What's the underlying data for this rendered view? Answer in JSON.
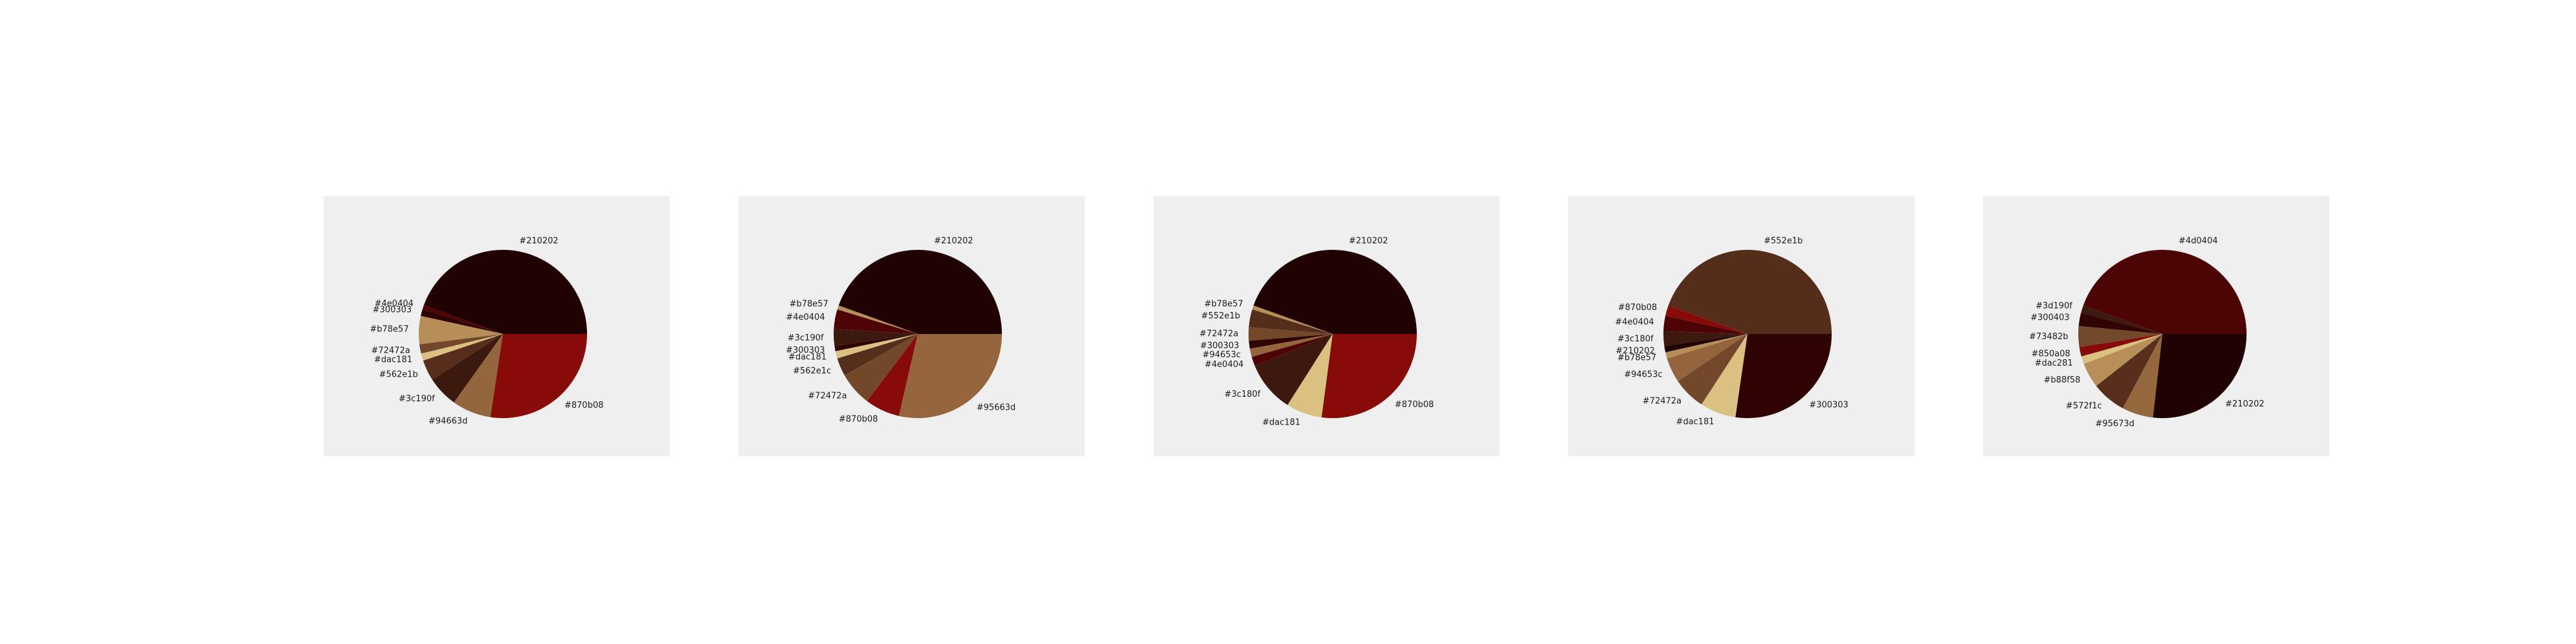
{
  "chart_data": [
    {
      "type": "pie",
      "title": "",
      "slices": [
        {
          "label": "#210202",
          "value": 44.5,
          "color": "#210202"
        },
        {
          "label": "#4e0404",
          "value": 0.8,
          "color": "#4e0404"
        },
        {
          "label": "#300303",
          "value": 1.3,
          "color": "#300303"
        },
        {
          "label": "#b78e57",
          "value": 5.4,
          "color": "#b78e57"
        },
        {
          "label": "#72472a",
          "value": 1.8,
          "color": "#72472a"
        },
        {
          "label": "#dac181",
          "value": 1.4,
          "color": "#dac181"
        },
        {
          "label": "#562e1b",
          "value": 4.0,
          "color": "#562e1b"
        },
        {
          "label": "#3c190f",
          "value": 6.0,
          "color": "#3c190f"
        },
        {
          "label": "#94663d",
          "value": 7.5,
          "color": "#94663d"
        },
        {
          "label": "#870b08",
          "value": 27.4,
          "color": "#870b08"
        }
      ]
    },
    {
      "type": "pie",
      "title": "",
      "slices": [
        {
          "label": "#210202",
          "value": 44.5,
          "color": "#210202"
        },
        {
          "label": "#b78e57",
          "value": 0.8,
          "color": "#b78e57"
        },
        {
          "label": "#4e0404",
          "value": 3.8,
          "color": "#4e0404"
        },
        {
          "label": "#3c190f",
          "value": 3.2,
          "color": "#3c190f"
        },
        {
          "label": "#300303",
          "value": 1.0,
          "color": "#300303"
        },
        {
          "label": "#dac181",
          "value": 1.4,
          "color": "#dac181"
        },
        {
          "label": "#562e1c",
          "value": 3.5,
          "color": "#562e1c"
        },
        {
          "label": "#72472a",
          "value": 6.5,
          "color": "#72472a"
        },
        {
          "label": "#870b08",
          "value": 6.7,
          "color": "#870b08"
        },
        {
          "label": "#95663d",
          "value": 28.6,
          "color": "#95663d"
        }
      ]
    },
    {
      "type": "pie",
      "title": "",
      "slices": [
        {
          "label": "#210202",
          "value": 44.5,
          "color": "#210202"
        },
        {
          "label": "#b78e57",
          "value": 0.8,
          "color": "#b78e57"
        },
        {
          "label": "#552e1b",
          "value": 3.4,
          "color": "#552e1b"
        },
        {
          "label": "#72472a",
          "value": 2.6,
          "color": "#72472a"
        },
        {
          "label": "#300303",
          "value": 1.5,
          "color": "#300303"
        },
        {
          "label": "#94653c",
          "value": 1.6,
          "color": "#94653c"
        },
        {
          "label": "#4e0404",
          "value": 1.8,
          "color": "#4e0404"
        },
        {
          "label": "#3c180f",
          "value": 9.8,
          "color": "#3c180f"
        },
        {
          "label": "#dac181",
          "value": 6.9,
          "color": "#dac181"
        },
        {
          "label": "#870b08",
          "value": 27.1,
          "color": "#870b08"
        }
      ]
    },
    {
      "type": "pie",
      "title": "",
      "slices": [
        {
          "label": "#552e1b",
          "value": 44.5,
          "color": "#552e1b"
        },
        {
          "label": "#870b08",
          "value": 2.0,
          "color": "#870b08"
        },
        {
          "label": "#4e0404",
          "value": 3.0,
          "color": "#4e0404"
        },
        {
          "label": "#3c180f",
          "value": 2.8,
          "color": "#3c180f"
        },
        {
          "label": "#210202",
          "value": 1.2,
          "color": "#210202"
        },
        {
          "label": "#b78e57",
          "value": 1.2,
          "color": "#b78e57"
        },
        {
          "label": "#94653c",
          "value": 4.8,
          "color": "#94653c"
        },
        {
          "label": "#72472a",
          "value": 6.3,
          "color": "#72472a"
        },
        {
          "label": "#dac181",
          "value": 6.9,
          "color": "#dac181"
        },
        {
          "label": "#300303",
          "value": 27.3,
          "color": "#300303"
        }
      ]
    },
    {
      "type": "pie",
      "title": "",
      "slices": [
        {
          "label": "#4d0404",
          "value": 44.5,
          "color": "#4d0404"
        },
        {
          "label": "#3d190f",
          "value": 1.5,
          "color": "#3d190f"
        },
        {
          "label": "#300403",
          "value": 2.5,
          "color": "#300403"
        },
        {
          "label": "#73482b",
          "value": 4.0,
          "color": "#73482b"
        },
        {
          "label": "#850a08",
          "value": 1.8,
          "color": "#850a08"
        },
        {
          "label": "#dac281",
          "value": 1.5,
          "color": "#dac281"
        },
        {
          "label": "#b88f58",
          "value": 4.8,
          "color": "#b88f58"
        },
        {
          "label": "#572f1c",
          "value": 6.6,
          "color": "#572f1c"
        },
        {
          "label": "#95673d",
          "value": 6.0,
          "color": "#95673d"
        },
        {
          "label": "#210202",
          "value": 26.8,
          "color": "#210202"
        }
      ]
    }
  ]
}
